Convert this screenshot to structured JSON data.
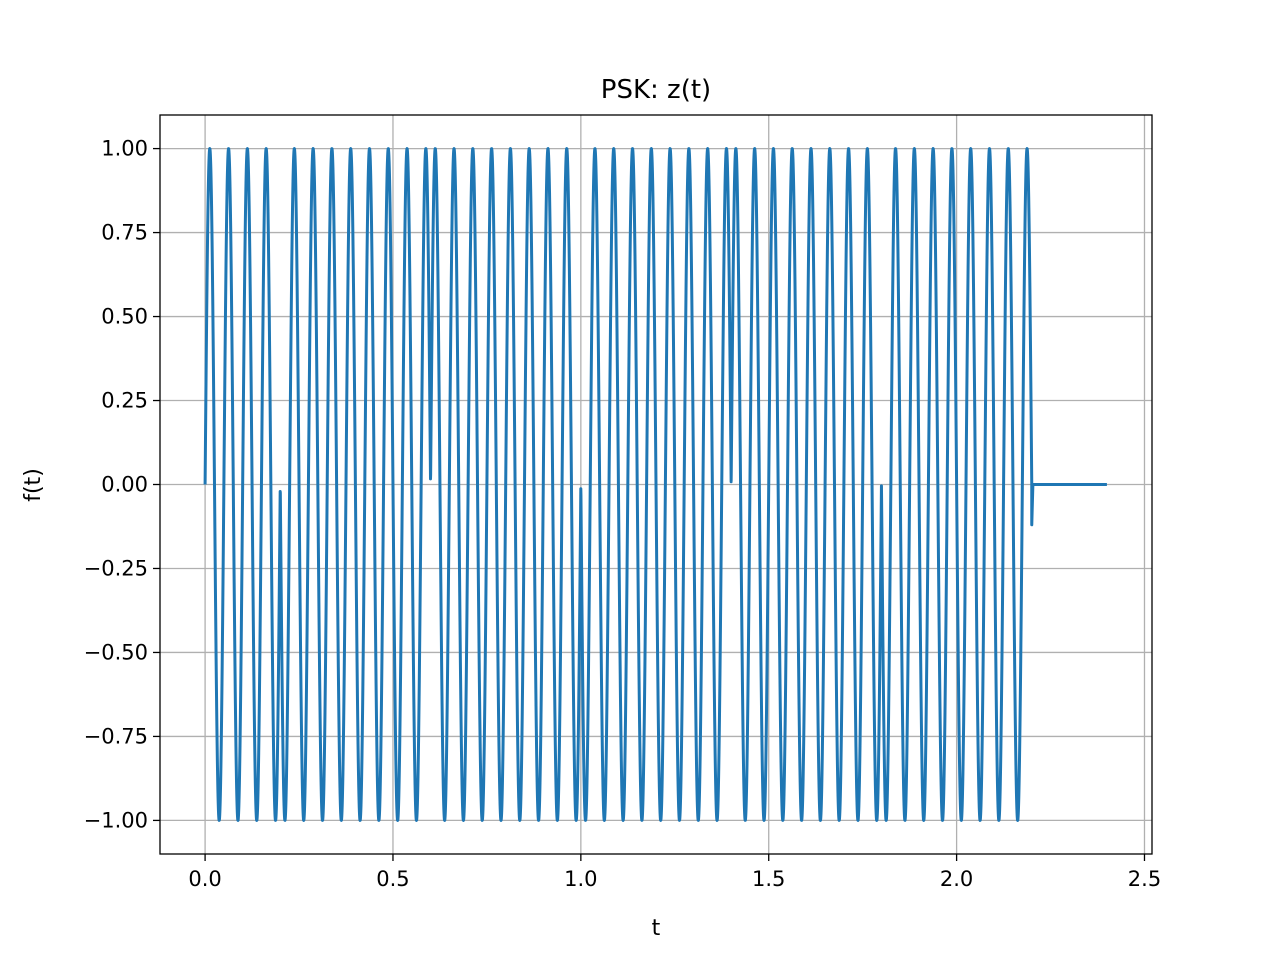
{
  "chart_data": {
    "type": "line",
    "title": "PSK: z(t)",
    "xlabel": "t",
    "ylabel": "f(t)",
    "xlim": [
      -0.12,
      2.52
    ],
    "ylim": [
      -1.1,
      1.1
    ],
    "xticks": [
      0.0,
      0.5,
      1.0,
      1.5,
      2.0,
      2.5
    ],
    "xtick_labels": [
      "0.0",
      "0.5",
      "1.0",
      "1.5",
      "2.0",
      "2.5"
    ],
    "yticks": [
      1.0,
      0.75,
      0.5,
      0.25,
      0.0,
      -0.25,
      -0.5,
      -0.75,
      -1.0
    ],
    "ytick_labels": [
      "1.00",
      "0.75",
      "0.50",
      "0.25",
      "0.00",
      "−0.25",
      "−0.50",
      "−0.75",
      "−1.00"
    ],
    "grid": true,
    "series": [
      {
        "color": "#1f77b4",
        "signal": {
          "carrier_frequency": 20,
          "amplitude": 1,
          "signal_end": 2.2,
          "final_value_at_end": -0.12,
          "zero_until": 2.4,
          "phase_segment_starts": [
            0.0,
            0.2,
            0.6,
            1.0,
            1.4,
            1.8
          ],
          "phase_segment_phases": [
            0,
            3.14159,
            0,
            3.14159,
            0,
            3.14159
          ]
        }
      }
    ]
  }
}
